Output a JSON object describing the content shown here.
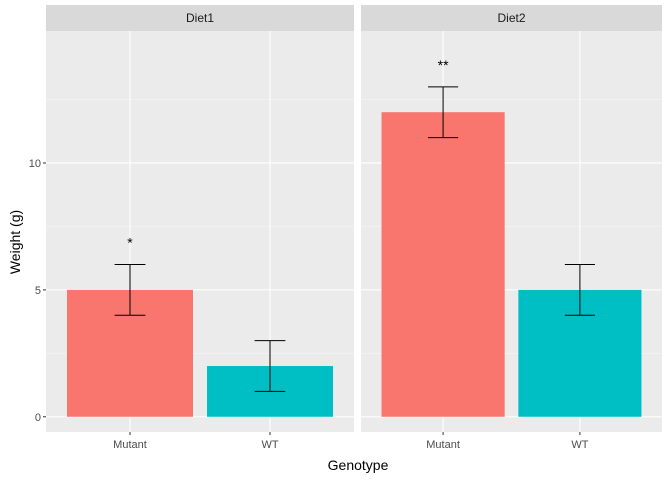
{
  "chart_data": {
    "type": "bar",
    "facet_by": "Diet",
    "xlabel": "Genotype",
    "ylabel": "Weight (g)",
    "ylim": [
      -0.6,
      15.2
    ],
    "y_ticks": [
      0,
      5,
      10
    ],
    "grid": true,
    "legend": "none",
    "categories": [
      "Mutant",
      "WT"
    ],
    "colors": {
      "Mutant": "#F8766D",
      "WT": "#00BFC4"
    },
    "panels": [
      {
        "name": "Diet1",
        "bars": [
          {
            "category": "Mutant",
            "value": 5,
            "error_low": 4,
            "error_high": 6,
            "significance": "*"
          },
          {
            "category": "WT",
            "value": 2,
            "error_low": 1,
            "error_high": 3,
            "significance": ""
          }
        ]
      },
      {
        "name": "Diet2",
        "bars": [
          {
            "category": "Mutant",
            "value": 12,
            "error_low": 11,
            "error_high": 13,
            "significance": "**"
          },
          {
            "category": "WT",
            "value": 5,
            "error_low": 4,
            "error_high": 6,
            "significance": ""
          }
        ]
      }
    ]
  }
}
